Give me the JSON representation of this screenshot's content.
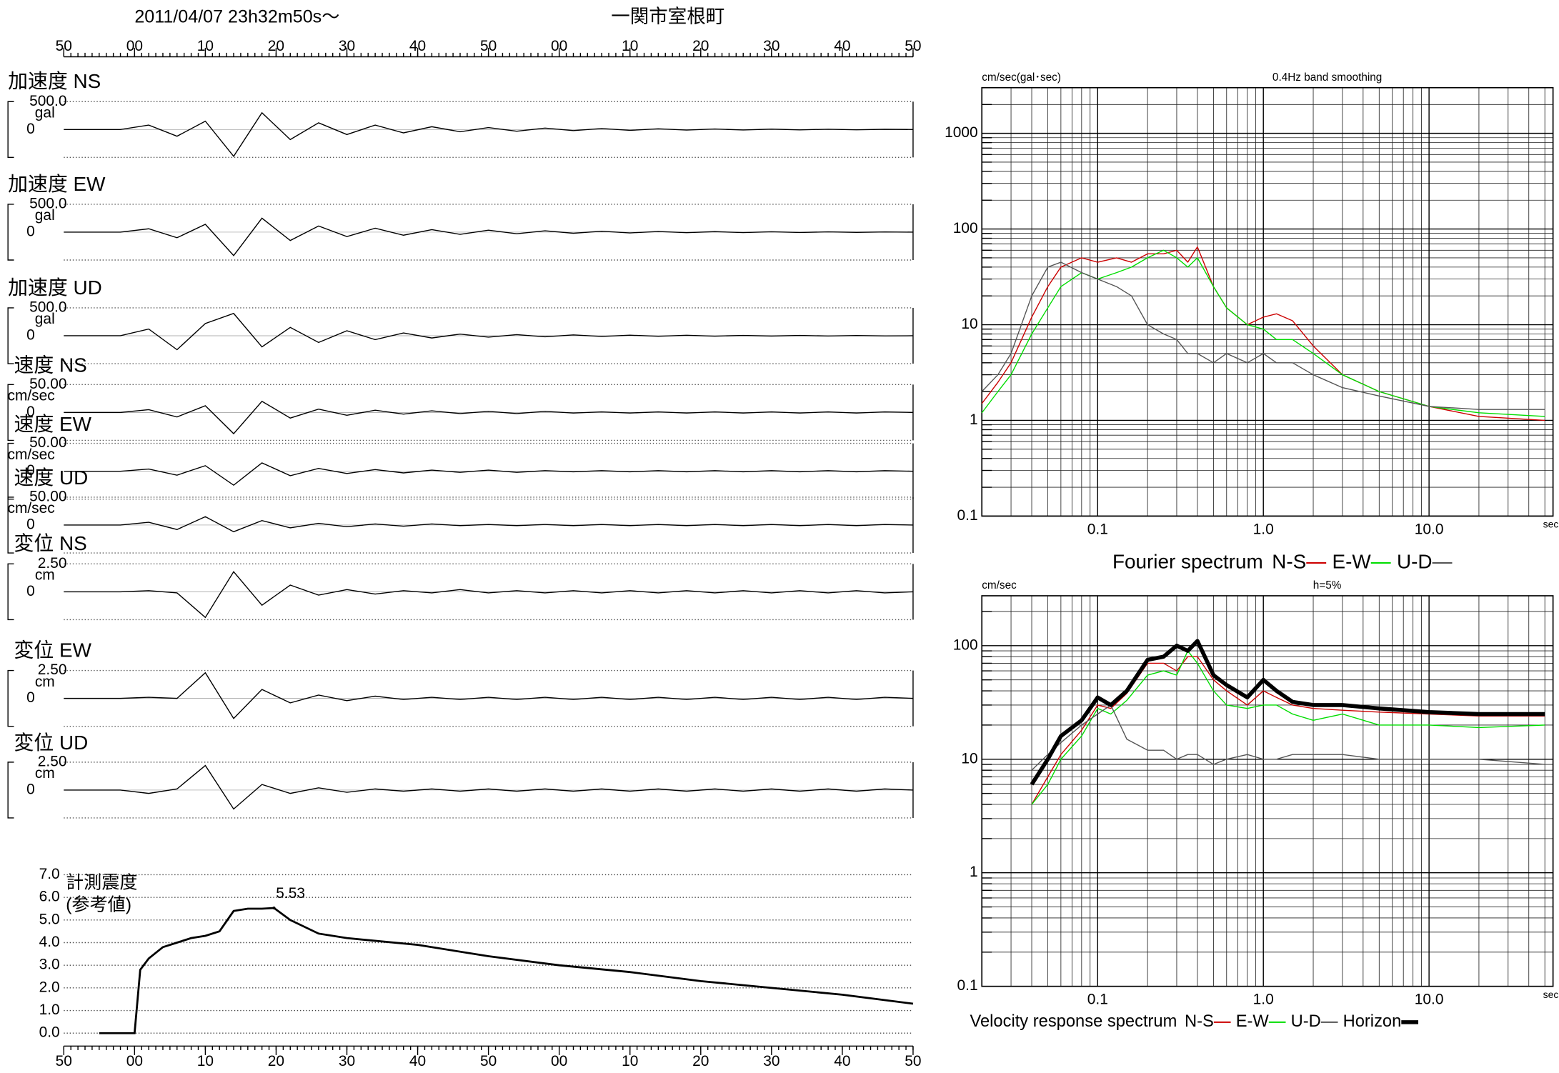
{
  "chart_data": [
    {
      "type": "waveform",
      "title": "一関市室根町",
      "subtitle": "2011/04/07  23h32m50s〜",
      "xlim": [
        0,
        120
      ],
      "xticks": [
        {
          "value": 0,
          "label": "50"
        },
        {
          "value": 10,
          "label": "00"
        },
        {
          "value": 20,
          "label": "10"
        },
        {
          "value": 30,
          "label": "20"
        },
        {
          "value": 40,
          "label": "30"
        },
        {
          "value": 50,
          "label": "40"
        },
        {
          "value": 60,
          "label": "50"
        },
        {
          "value": 70,
          "label": "00"
        },
        {
          "value": 80,
          "label": "10"
        },
        {
          "value": 90,
          "label": "20"
        },
        {
          "value": 100,
          "label": "30"
        },
        {
          "value": 110,
          "label": "40"
        },
        {
          "value": 120,
          "label": "50"
        }
      ],
      "x": [
        0,
        4,
        8,
        12,
        16,
        20,
        24,
        28,
        32,
        36,
        40,
        44,
        48,
        52,
        56,
        60,
        64,
        68,
        72,
        76,
        80,
        84,
        88,
        92,
        96,
        100,
        104,
        108,
        112,
        116,
        120
      ],
      "series": [
        {
          "name": "加速度 NS",
          "unit": "gal",
          "color": "#000000",
          "ylim": [
            -500,
            500
          ],
          "yticks": [
            {
              "value": 500,
              "label": "500.0"
            },
            0
          ],
          "values": [
            0,
            0,
            0,
            80,
            -120,
            150,
            -480,
            300,
            -180,
            120,
            -90,
            80,
            -60,
            50,
            -40,
            35,
            -30,
            25,
            -20,
            18,
            -15,
            12,
            -10,
            9,
            -8,
            7,
            -6,
            5,
            -5,
            4,
            0
          ]
        },
        {
          "name": "加速度 EW",
          "unit": "gal",
          "color": "#000000",
          "ylim": [
            -500,
            500
          ],
          "yticks": [
            {
              "value": 500,
              "label": "500.0"
            },
            0
          ],
          "values": [
            0,
            0,
            0,
            60,
            -100,
            140,
            -420,
            250,
            -150,
            110,
            -80,
            70,
            -55,
            45,
            -40,
            35,
            -28,
            24,
            -20,
            16,
            -14,
            12,
            -10,
            9,
            -8,
            7,
            -6,
            5,
            -4,
            4,
            0
          ]
        },
        {
          "name": "加速度 UD",
          "unit": "gal",
          "color": "#000000",
          "ylim": [
            -500,
            500
          ],
          "yticks": [
            {
              "value": 500,
              "label": "500.0"
            },
            0
          ],
          "values": [
            0,
            0,
            0,
            120,
            -250,
            220,
            400,
            -200,
            150,
            -120,
            90,
            -70,
            50,
            -40,
            30,
            -25,
            20,
            -18,
            15,
            -12,
            10,
            -9,
            8,
            -7,
            6,
            -5,
            5,
            -4,
            4,
            -3,
            0
          ]
        },
        {
          "name": "速度 NS",
          "unit": "cm/sec",
          "color": "#000000",
          "ylim": [
            -50,
            50
          ],
          "yticks": [
            {
              "value": 50,
              "label": "50.00"
            },
            0
          ],
          "values": [
            0,
            0,
            0,
            5,
            -8,
            12,
            -38,
            20,
            -10,
            6,
            -5,
            4,
            -3,
            3,
            -2,
            2,
            -2,
            2,
            -1,
            1,
            -1,
            1,
            -1,
            1,
            -1,
            1,
            -1,
            1,
            -1,
            1,
            0
          ]
        },
        {
          "name": "速度 EW",
          "unit": "cm/sec",
          "color": "#000000",
          "ylim": [
            -50,
            50
          ],
          "yticks": [
            {
              "value": 50,
              "label": "50.00"
            },
            0
          ],
          "values": [
            0,
            0,
            0,
            4,
            -7,
            10,
            -25,
            15,
            -8,
            5,
            -4,
            3,
            -3,
            2,
            -2,
            2,
            -2,
            1,
            -1,
            1,
            -1,
            1,
            -1,
            1,
            -1,
            1,
            -1,
            1,
            -1,
            1,
            0
          ]
        },
        {
          "name": "速度 UD",
          "unit": "cm/sec",
          "color": "#000000",
          "ylim": [
            -50,
            50
          ],
          "yticks": [
            {
              "value": 50,
              "label": "50.00"
            },
            0
          ],
          "values": [
            0,
            0,
            0,
            5,
            -8,
            15,
            -12,
            8,
            -5,
            3,
            -3,
            2,
            -2,
            2,
            -1,
            1,
            -1,
            1,
            -1,
            1,
            -1,
            1,
            -1,
            1,
            -1,
            1,
            -1,
            1,
            -1,
            1,
            0
          ]
        },
        {
          "name": "変位 NS",
          "unit": "cm",
          "color": "#000000",
          "ylim": [
            -2.5,
            2.5
          ],
          "yticks": [
            {
              "value": 2.5,
              "label": "2.50"
            },
            0
          ],
          "values": [
            0,
            0,
            0,
            0.1,
            -0.1,
            -2.3,
            1.8,
            -1.2,
            0.6,
            -0.3,
            0.2,
            -0.2,
            0.1,
            -0.1,
            0.2,
            -0.1,
            0.1,
            -0.1,
            0.1,
            -0.1,
            0.1,
            -0.1,
            0.1,
            -0.1,
            0.1,
            -0.1,
            0.1,
            -0.1,
            0.1,
            -0.1,
            0
          ]
        },
        {
          "name": "変位 EW",
          "unit": "cm",
          "color": "#000000",
          "ylim": [
            -2.5,
            2.5
          ],
          "yticks": [
            {
              "value": 2.5,
              "label": "2.50"
            },
            0
          ],
          "values": [
            0,
            0,
            0,
            0.1,
            0,
            2.3,
            -1.8,
            0.8,
            -0.4,
            0.3,
            -0.2,
            0.2,
            -0.1,
            0.1,
            -0.1,
            0.1,
            -0.1,
            0.1,
            -0.1,
            0.1,
            -0.1,
            0.1,
            -0.1,
            0.1,
            -0.1,
            0.1,
            -0.1,
            0.1,
            -0.1,
            0.1,
            0
          ]
        },
        {
          "name": "変位 UD",
          "unit": "cm",
          "color": "#000000",
          "ylim": [
            -2.5,
            2.5
          ],
          "yticks": [
            {
              "value": 2.5,
              "label": "2.50"
            },
            0
          ],
          "values": [
            0,
            0,
            0,
            -0.3,
            0.1,
            2.2,
            -1.7,
            0.5,
            -0.3,
            0.2,
            -0.2,
            0.1,
            -0.1,
            0.1,
            -0.1,
            0.1,
            -0.1,
            0.1,
            -0.1,
            0.1,
            -0.1,
            0.1,
            -0.1,
            0.1,
            -0.1,
            0.1,
            -0.1,
            0.1,
            -0.1,
            0.1,
            0
          ]
        }
      ]
    },
    {
      "type": "line",
      "title": "計測震度",
      "subtitle": "(参考値)",
      "color": "#000000",
      "grid": true,
      "xlim": [
        0,
        120
      ],
      "xticks": [
        {
          "value": 0,
          "label": "50"
        },
        {
          "value": 10,
          "label": "00"
        },
        {
          "value": 20,
          "label": "10"
        },
        {
          "value": 30,
          "label": "20"
        },
        {
          "value": 40,
          "label": "30"
        },
        {
          "value": 50,
          "label": "40"
        },
        {
          "value": 60,
          "label": "50"
        },
        {
          "value": 70,
          "label": "00"
        },
        {
          "value": 80,
          "label": "10"
        },
        {
          "value": 90,
          "label": "20"
        },
        {
          "value": 100,
          "label": "30"
        },
        {
          "value": 110,
          "label": "40"
        },
        {
          "value": 120,
          "label": "50"
        }
      ],
      "ylim": [
        0,
        7
      ],
      "yticks": [
        {
          "value": 0,
          "label": "0.0"
        },
        {
          "value": 1,
          "label": "1.0"
        },
        {
          "value": 2,
          "label": "2.0"
        },
        {
          "value": 3,
          "label": "3.0"
        },
        {
          "value": 4,
          "label": "4.0"
        },
        {
          "value": 5,
          "label": "5.0"
        },
        {
          "value": 6,
          "label": "6.0"
        },
        {
          "value": 7,
          "label": "7.0"
        }
      ],
      "x": [
        5,
        10,
        10.8,
        12,
        14,
        16,
        18,
        20,
        22,
        24,
        26,
        28,
        29.7,
        32,
        36,
        40,
        50,
        60,
        70,
        80,
        90,
        100,
        110,
        120
      ],
      "values": [
        0,
        0,
        2.8,
        3.3,
        3.8,
        4.0,
        4.2,
        4.3,
        4.5,
        5.4,
        5.5,
        5.5,
        5.53,
        5.0,
        4.4,
        4.2,
        3.9,
        3.4,
        3.0,
        2.7,
        2.3,
        2.0,
        1.7,
        1.3
      ],
      "peak": {
        "x": 29.7,
        "y": 5.53
      }
    },
    {
      "type": "logline",
      "title": "Fourier spectrum",
      "subtitle": "0.4Hz band smoothing",
      "ylabel": "cm/sec(gal･sec)",
      "xlabel": "sec",
      "log": true,
      "grid": true,
      "xlim": [
        0.02,
        56
      ],
      "ylim": [
        0.1,
        3000
      ],
      "xticks": [
        0.1,
        {
          "value": 1,
          "label": "1.0"
        },
        {
          "value": 10,
          "label": "10.0"
        }
      ],
      "yticks": [
        0.1,
        1,
        10,
        100,
        1000
      ],
      "x": [
        0.02,
        0.025,
        0.03,
        0.04,
        0.05,
        0.06,
        0.08,
        0.1,
        0.13,
        0.16,
        0.2,
        0.25,
        0.3,
        0.35,
        0.4,
        0.5,
        0.6,
        0.8,
        1,
        1.2,
        1.5,
        2,
        3,
        5,
        10,
        20,
        50
      ],
      "series": [
        {
          "name": "N-S",
          "color": "#cc0000",
          "width": 1,
          "values": [
            1.5,
            2.5,
            4,
            12,
            25,
            40,
            50,
            45,
            50,
            45,
            55,
            55,
            60,
            45,
            65,
            25,
            15,
            10,
            12,
            13,
            11,
            6,
            3,
            2,
            1.4,
            1.1,
            1
          ]
        },
        {
          "name": "E-W",
          "color": "#00dd00",
          "width": 1,
          "values": [
            1.2,
            2,
            3,
            8,
            15,
            25,
            35,
            30,
            35,
            40,
            50,
            60,
            50,
            40,
            50,
            25,
            15,
            10,
            9,
            7,
            7,
            5,
            3,
            2,
            1.4,
            1.2,
            1.1
          ]
        },
        {
          "name": "U-D",
          "color": "#555555",
          "width": 1,
          "values": [
            2,
            3,
            5,
            20,
            40,
            45,
            35,
            30,
            25,
            20,
            10,
            8,
            7,
            5,
            5,
            4,
            5,
            4,
            5,
            4,
            4,
            3,
            2.2,
            1.8,
            1.4,
            1.3,
            1.3
          ]
        }
      ]
    },
    {
      "type": "logline",
      "title": "Velocity response spectrum",
      "subtitle": "h=5%",
      "ylabel": "cm/sec",
      "xlabel": "sec",
      "log": true,
      "grid": true,
      "xlim": [
        0.02,
        56
      ],
      "ylim": [
        0.1,
        275
      ],
      "xticks": [
        0.1,
        {
          "value": 1,
          "label": "1.0"
        },
        {
          "value": 10,
          "label": "10.0"
        }
      ],
      "yticks": [
        0.1,
        1,
        10,
        100
      ],
      "x": [
        0.04,
        0.05,
        0.06,
        0.08,
        0.1,
        0.12,
        0.15,
        0.2,
        0.25,
        0.3,
        0.35,
        0.4,
        0.5,
        0.6,
        0.8,
        1,
        1.2,
        1.5,
        2,
        3,
        5,
        10,
        20,
        50
      ],
      "series": [
        {
          "name": "N-S",
          "color": "#cc0000",
          "width": 1,
          "values": [
            4,
            7,
            11,
            18,
            30,
            28,
            38,
            70,
            70,
            60,
            80,
            80,
            50,
            40,
            30,
            40,
            35,
            30,
            28,
            27,
            26,
            25,
            24,
            24
          ]
        },
        {
          "name": "E-W",
          "color": "#00dd00",
          "width": 1,
          "values": [
            4,
            6,
            10,
            16,
            28,
            25,
            33,
            55,
            60,
            55,
            90,
            70,
            40,
            30,
            28,
            30,
            30,
            25,
            22,
            25,
            20,
            20,
            19,
            20
          ]
        },
        {
          "name": "U-D",
          "color": "#555555",
          "width": 1,
          "values": [
            8,
            11,
            14,
            20,
            25,
            30,
            15,
            12,
            12,
            10,
            11,
            11,
            9,
            10,
            11,
            10,
            10,
            11,
            11,
            11,
            10,
            10,
            10,
            9
          ]
        },
        {
          "name": "Horizon",
          "color": "#000000",
          "width": 4,
          "values": [
            6,
            10,
            16,
            22,
            35,
            30,
            40,
            75,
            80,
            100,
            90,
            110,
            55,
            45,
            35,
            50,
            40,
            32,
            30,
            30,
            28,
            26,
            25,
            25
          ]
        }
      ]
    }
  ]
}
